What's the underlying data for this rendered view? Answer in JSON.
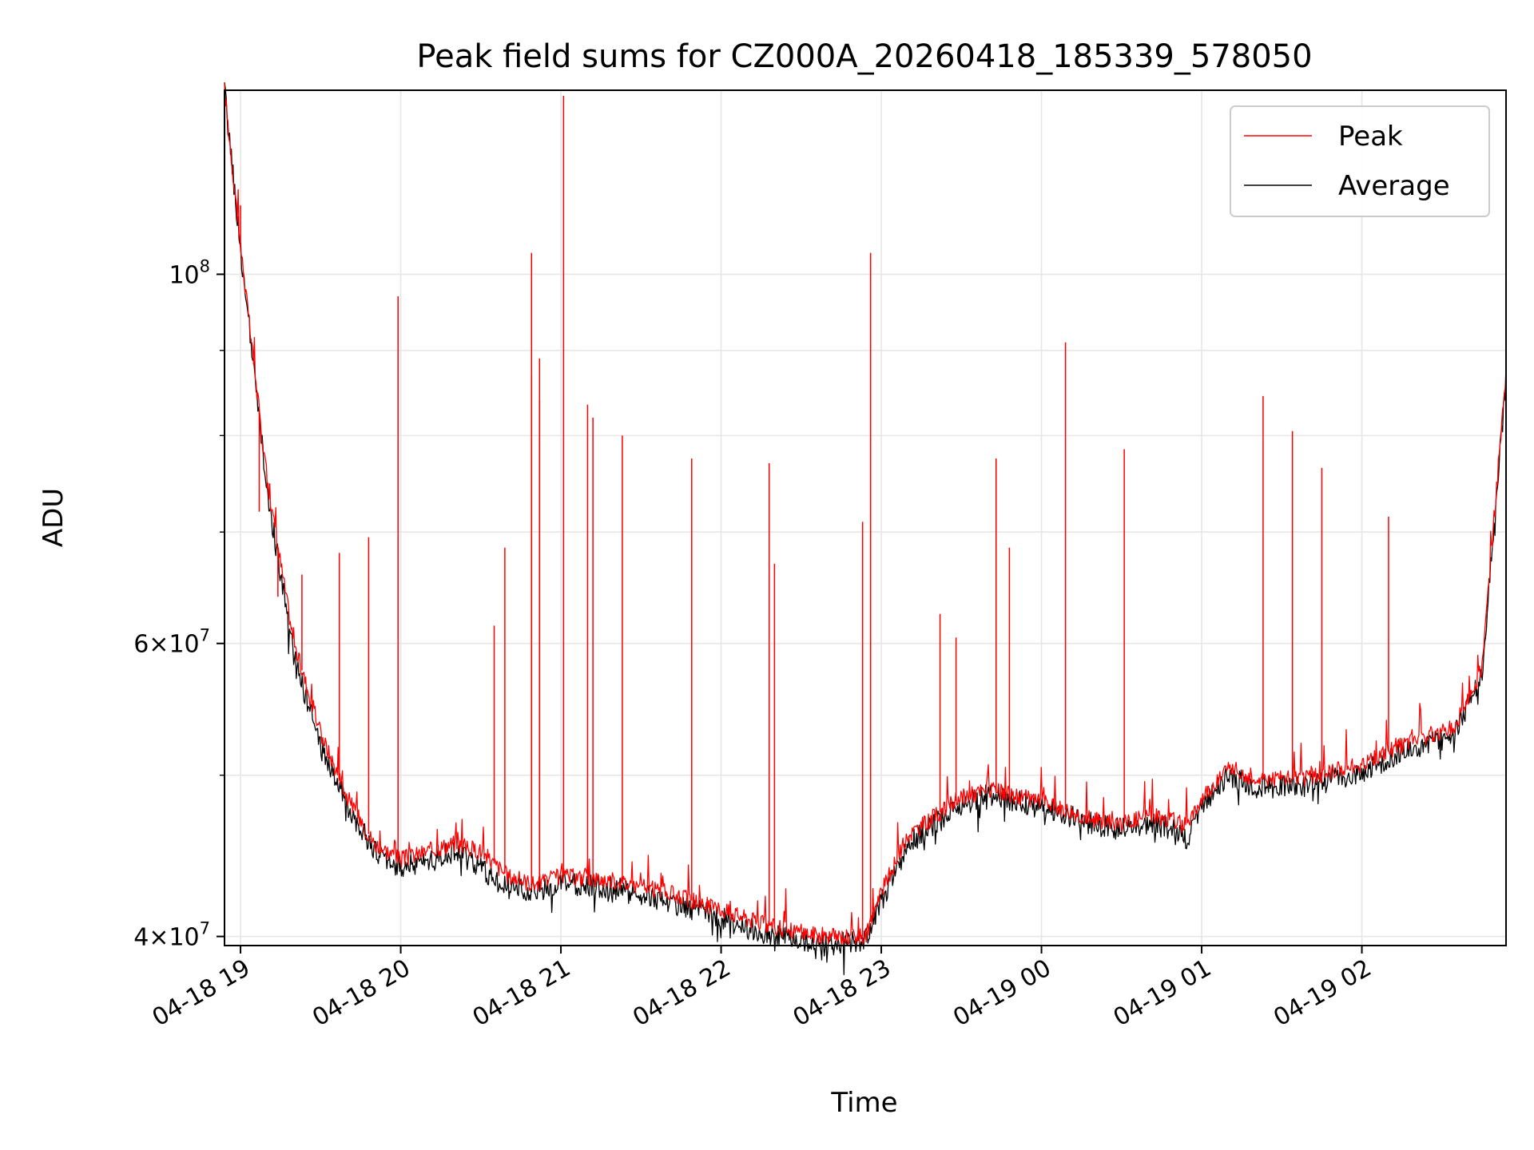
{
  "chart_data": {
    "type": "line",
    "title": "Peak field sums for CZ000A_20260418_185339_578050",
    "xlabel": "Time",
    "ylabel": "ADU",
    "y_scale": "log",
    "ylim": [
      39500000,
      129000000
    ],
    "xlim": [
      "04-18 18:54",
      "04-19 02:54"
    ],
    "grid": true,
    "legend_position": "top-right",
    "x_ticks": [
      "04-18 19",
      "04-18 20",
      "04-18 21",
      "04-18 22",
      "04-18 23",
      "04-19 00",
      "04-19 01",
      "04-19 02"
    ],
    "y_ticks": [
      {
        "value": 40000000,
        "mantissa": "4",
        "exp": "7"
      },
      {
        "value": 60000000,
        "mantissa": "6",
        "exp": "7"
      },
      {
        "value": 100000000,
        "mantissa": "",
        "exp": "8"
      }
    ],
    "y_minor_ticks": [
      50000000,
      70000000,
      80000000,
      90000000
    ],
    "x": [
      "04-18 18:54",
      "04-18 19:00",
      "04-18 19:10",
      "04-18 19:20",
      "04-18 19:30",
      "04-18 19:40",
      "04-18 19:50",
      "04-18 20:00",
      "04-18 20:10",
      "04-18 20:20",
      "04-18 20:30",
      "04-18 20:40",
      "04-18 20:50",
      "04-18 21:00",
      "04-18 21:20",
      "04-18 21:40",
      "04-18 22:00",
      "04-18 22:20",
      "04-18 22:40",
      "04-18 22:54",
      "04-18 23:00",
      "04-18 23:10",
      "04-18 23:30",
      "04-18 23:40",
      "04-19 00:00",
      "04-19 00:20",
      "04-19 00:30",
      "04-19 00:40",
      "04-19 00:50",
      "04-19 00:55",
      "04-19 01:00",
      "04-19 01:10",
      "04-19 01:20",
      "04-19 01:40",
      "04-19 02:00",
      "04-19 02:20",
      "04-19 02:35",
      "04-19 02:45",
      "04-19 02:54"
    ],
    "series": [
      {
        "name": "Peak",
        "color": "#ff0000",
        "values": [
          129000000,
          104000000,
          75000000,
          60000000,
          53000000,
          48500000,
          45500000,
          44500000,
          45000000,
          45500000,
          45000000,
          43500000,
          43000000,
          43500000,
          43200000,
          42500000,
          41500000,
          40500000,
          40000000,
          40000000,
          42500000,
          46000000,
          48500000,
          49000000,
          48200000,
          47000000,
          46800000,
          47300000,
          47000000,
          46500000,
          48500000,
          50500000,
          49800000,
          49800000,
          50800000,
          52500000,
          53500000,
          58000000,
          87500000
        ],
        "spikes": [
          {
            "x": "04-18 19:00",
            "y": 110000000
          },
          {
            "x": "04-18 19:07",
            "y": 72000000
          },
          {
            "x": "04-18 19:14",
            "y": 64000000
          },
          {
            "x": "04-18 19:23",
            "y": 66000000
          },
          {
            "x": "04-18 19:37",
            "y": 68000000
          },
          {
            "x": "04-18 19:48",
            "y": 69500000
          },
          {
            "x": "04-18 19:59",
            "y": 97000000
          },
          {
            "x": "04-18 20:35",
            "y": 61500000
          },
          {
            "x": "04-18 20:39",
            "y": 68500000
          },
          {
            "x": "04-18 20:49",
            "y": 103000000
          },
          {
            "x": "04-18 20:52",
            "y": 89000000
          },
          {
            "x": "04-18 21:01",
            "y": 128000000
          },
          {
            "x": "04-18 21:10",
            "y": 83500000
          },
          {
            "x": "04-18 21:12",
            "y": 82000000
          },
          {
            "x": "04-18 21:23",
            "y": 80000000
          },
          {
            "x": "04-18 21:49",
            "y": 77500000
          },
          {
            "x": "04-18 22:18",
            "y": 77000000
          },
          {
            "x": "04-18 22:20",
            "y": 67000000
          },
          {
            "x": "04-18 22:53",
            "y": 71000000
          },
          {
            "x": "04-18 22:56",
            "y": 103000000
          },
          {
            "x": "04-18 23:22",
            "y": 62500000
          },
          {
            "x": "04-18 23:28",
            "y": 60500000
          },
          {
            "x": "04-18 23:43",
            "y": 77500000
          },
          {
            "x": "04-18 23:48",
            "y": 68500000
          },
          {
            "x": "04-19 00:09",
            "y": 91000000
          },
          {
            "x": "04-19 00:31",
            "y": 78500000
          },
          {
            "x": "04-19 01:23",
            "y": 84500000
          },
          {
            "x": "04-19 01:34",
            "y": 80500000
          },
          {
            "x": "04-19 01:45",
            "y": 76500000
          },
          {
            "x": "04-19 02:10",
            "y": 71500000
          }
        ]
      },
      {
        "name": "Average",
        "color": "#000000",
        "values": [
          129000000,
          103500000,
          74000000,
          59000000,
          52000000,
          48000000,
          45000000,
          44000000,
          44500000,
          45000000,
          44000000,
          42800000,
          42500000,
          43000000,
          42800000,
          42000000,
          41000000,
          40000000,
          39600000,
          39700000,
          42000000,
          45500000,
          48000000,
          48700000,
          47800000,
          46700000,
          46500000,
          46800000,
          46300000,
          45800000,
          48000000,
          50000000,
          49200000,
          49300000,
          50200000,
          52000000,
          53000000,
          57500000,
          86500000
        ],
        "spikes": [
          {
            "x": "04-18 20:49",
            "y": 87000000
          },
          {
            "x": "04-18 20:52",
            "y": 84000000
          }
        ]
      }
    ]
  }
}
